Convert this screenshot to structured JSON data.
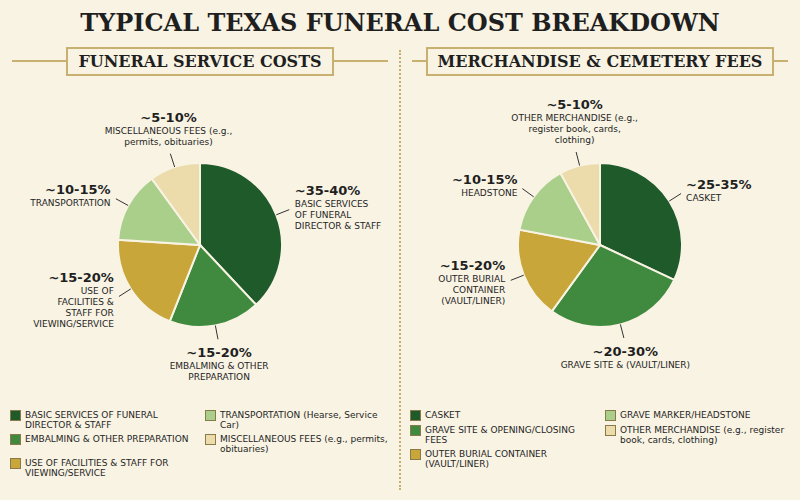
{
  "title": "TYPICAL TEXAS FUNERAL COST BREAKDOWN",
  "chart_data": [
    {
      "type": "pie",
      "title": "FUNERAL SERVICE COSTS",
      "categories": [
        "BASIC SERVICES OF FUNERAL DIRECTOR & STAFF",
        "EMBALMING & OTHER PREPARATION",
        "USE OF FACILITIES & STAFF FOR VIEWING/SERVICE",
        "TRANSPORTATION",
        "MISCELLANEOUS FEES (e.g., permits, obituaries)"
      ],
      "values": [
        38,
        18,
        20,
        14,
        10
      ],
      "value_labels": [
        "~35-40%",
        "~15-20%",
        "~15-20%",
        "~10-15%",
        "~5-10%"
      ],
      "colors": [
        "#1f5a2b",
        "#3f8a3f",
        "#c8a63a",
        "#a9cf8b",
        "#ecdcac"
      ],
      "legend_labels": [
        "BASIC SERVICES OF FUNERAL DIRECTOR & STAFF",
        "EMBALMING & OTHER PREPARATION",
        "USE OF FACILITIES & STAFF FOR VIEWING/SERVICE",
        "TRANSPORTATION (Hearse, Service Car)",
        "MISCELLANEOUS FEES (e.g., permits, obituaries)"
      ],
      "legend": "bottom",
      "data_labels": true
    },
    {
      "type": "pie",
      "title": "MERCHANDISE & CEMETERY FEES",
      "categories": [
        "CASKET",
        "GRAVE SITE & (VAULT/LINER)",
        "OUTER BURIAL CONTAINER (VAULT/LINER)",
        "HEADSTONE",
        "OTHER MERCHANDISE (e.g., register book, cards, clothing)"
      ],
      "values": [
        32,
        28,
        18,
        14,
        8
      ],
      "value_labels": [
        "~25-35%",
        "~20-30%",
        "~15-20%",
        "~10-15%",
        "~5-10%"
      ],
      "colors": [
        "#1f5a2b",
        "#3f8a3f",
        "#c8a63a",
        "#a9cf8b",
        "#ecdcac"
      ],
      "legend_labels": [
        "CASKET",
        "GRAVE SITE & OPENING/CLOSING FEES",
        "OUTER BURIAL CONTAINER (VAULT/LINER)",
        "GRAVE MARKER/HEADSTONE",
        "OTHER MERCHANDISE (e.g., register book, cards, clothing)"
      ],
      "legend": "bottom",
      "data_labels": true
    }
  ]
}
